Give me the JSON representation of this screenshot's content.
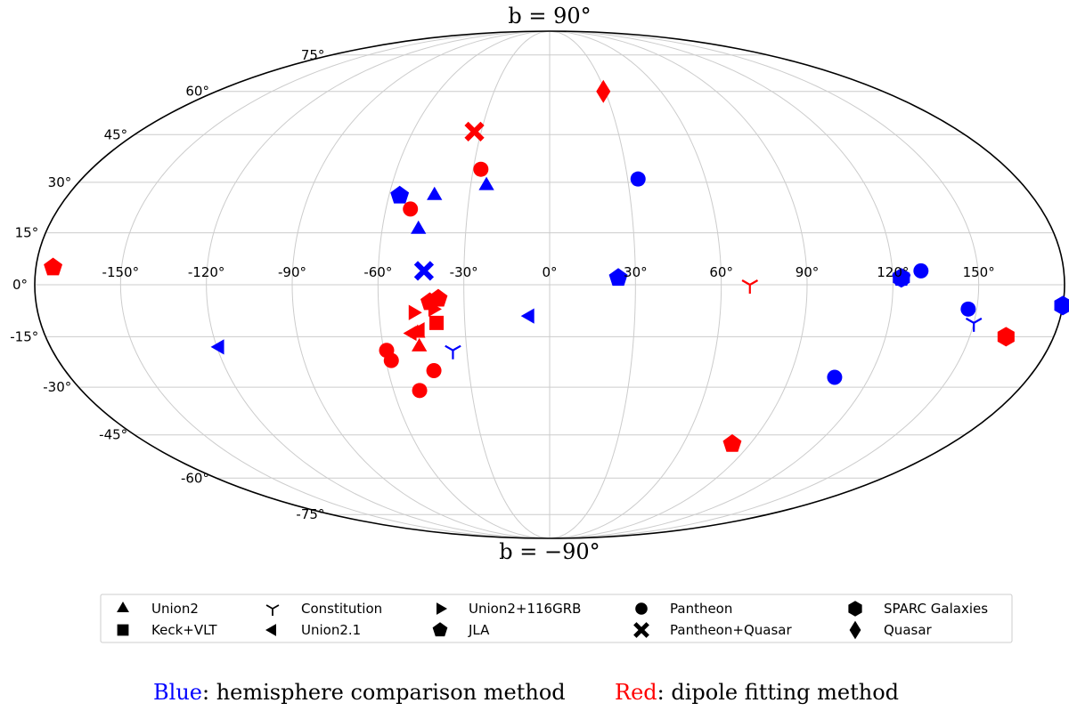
{
  "chart_data": {
    "type": "scatter",
    "projection": "mollweide",
    "grid": true,
    "top_label": "b = 90°",
    "bottom_label": "b = −90°",
    "lon_ticks": [
      "-150°",
      "-120°",
      "-90°",
      "-60°",
      "-30°",
      "0°",
      "30°",
      "60°",
      "90°",
      "120°",
      "150°"
    ],
    "lon_tick_values": [
      -150,
      -120,
      -90,
      -60,
      -30,
      0,
      30,
      60,
      90,
      120,
      150
    ],
    "lat_ticks": [
      "75°",
      "60°",
      "45°",
      "30°",
      "15°",
      "0°",
      "-15°",
      "-30°",
      "-45°",
      "-60°",
      "-75°"
    ],
    "lat_tick_values": [
      75,
      60,
      45,
      30,
      15,
      0,
      -15,
      -30,
      -45,
      -60,
      -75
    ],
    "colors": {
      "blue": "#0000ff",
      "red": "#ff0000"
    },
    "legend": [
      {
        "marker": "triangle-up",
        "label": "Union2"
      },
      {
        "marker": "square",
        "label": "Keck+VLT"
      },
      {
        "marker": "tri-down",
        "label": "Constitution"
      },
      {
        "marker": "triangle-left",
        "label": "Union2.1"
      },
      {
        "marker": "triangle-right",
        "label": "Union2+116GRB"
      },
      {
        "marker": "pentagon",
        "label": "JLA"
      },
      {
        "marker": "circle",
        "label": "Pantheon"
      },
      {
        "marker": "x",
        "label": "Pantheon+Quasar"
      },
      {
        "marker": "hexagon",
        "label": "SPARC Galaxies"
      },
      {
        "marker": "diamond",
        "label": "Quasar"
      }
    ],
    "caption": {
      "blue_word": "Blue",
      "blue_text": ": hemisphere comparison method",
      "red_word": "Red",
      "red_text": ": dipole fitting method"
    },
    "points": [
      {
        "l": -43,
        "b": 26,
        "marker": "triangle-up",
        "color": "blue"
      },
      {
        "l": -47,
        "b": 16,
        "marker": "triangle-up",
        "color": "blue"
      },
      {
        "l": -24,
        "b": 29,
        "marker": "triangle-up",
        "color": "blue"
      },
      {
        "l": -47,
        "b": -14,
        "marker": "triangle-up",
        "color": "red"
      },
      {
        "l": -47,
        "b": -18,
        "marker": "triangle-up",
        "color": "red"
      },
      {
        "l": -40,
        "b": -11,
        "marker": "square",
        "color": "red"
      },
      {
        "l": -35,
        "b": -19,
        "marker": "tri-down",
        "color": "blue"
      },
      {
        "l": 150,
        "b": -11,
        "marker": "tri-down",
        "color": "blue"
      },
      {
        "l": 70,
        "b": 0,
        "marker": "tri-down",
        "color": "red"
      },
      {
        "l": -119,
        "b": -18,
        "marker": "triangle-left",
        "color": "blue"
      },
      {
        "l": -7,
        "b": -9,
        "marker": "triangle-left",
        "color": "blue"
      },
      {
        "l": -46,
        "b": -13,
        "marker": "triangle-left",
        "color": "red"
      },
      {
        "l": -49,
        "b": -14,
        "marker": "triangle-left",
        "color": "red"
      },
      {
        "l": -48,
        "b": -8,
        "marker": "triangle-right",
        "color": "red"
      },
      {
        "l": -41,
        "b": -7,
        "marker": "triangle-right",
        "color": "red"
      },
      {
        "l": -56,
        "b": 26,
        "marker": "pentagon",
        "color": "blue"
      },
      {
        "l": 24,
        "b": 2,
        "marker": "pentagon",
        "color": "blue"
      },
      {
        "l": 123,
        "b": 2,
        "marker": "pentagon",
        "color": "blue"
      },
      {
        "l": -42,
        "b": -5,
        "marker": "pentagon",
        "color": "red"
      },
      {
        "l": -39,
        "b": -4,
        "marker": "pentagon",
        "color": "red"
      },
      {
        "l": 82,
        "b": -48,
        "marker": "pentagon",
        "color": "red"
      },
      {
        "l": -174,
        "b": 5,
        "marker": "pentagon",
        "color": "red"
      },
      {
        "l": 34,
        "b": 31,
        "marker": "circle",
        "color": "blue"
      },
      {
        "l": 107,
        "b": -27,
        "marker": "circle",
        "color": "blue"
      },
      {
        "l": 130,
        "b": 4,
        "marker": "circle",
        "color": "blue"
      },
      {
        "l": 147,
        "b": -7,
        "marker": "circle",
        "color": "blue"
      },
      {
        "l": -27,
        "b": 34,
        "marker": "circle",
        "color": "red"
      },
      {
        "l": -51,
        "b": 22,
        "marker": "circle",
        "color": "red"
      },
      {
        "l": -59,
        "b": -19,
        "marker": "circle",
        "color": "red"
      },
      {
        "l": -58,
        "b": -22,
        "marker": "circle",
        "color": "red"
      },
      {
        "l": -43,
        "b": -25,
        "marker": "circle",
        "color": "red"
      },
      {
        "l": -50,
        "b": -31,
        "marker": "circle",
        "color": "red"
      },
      {
        "l": -44,
        "b": 4,
        "marker": "x",
        "color": "blue"
      },
      {
        "l": -33,
        "b": 46,
        "marker": "x",
        "color": "red"
      },
      {
        "l": 123,
        "b": 2,
        "marker": "hexagon",
        "color": "blue"
      },
      {
        "l": 180,
        "b": -6,
        "marker": "hexagon",
        "color": "blue"
      },
      {
        "l": 163,
        "b": -15,
        "marker": "hexagon",
        "color": "red"
      },
      {
        "l": 29,
        "b": 60,
        "marker": "diamond",
        "color": "red"
      }
    ]
  }
}
